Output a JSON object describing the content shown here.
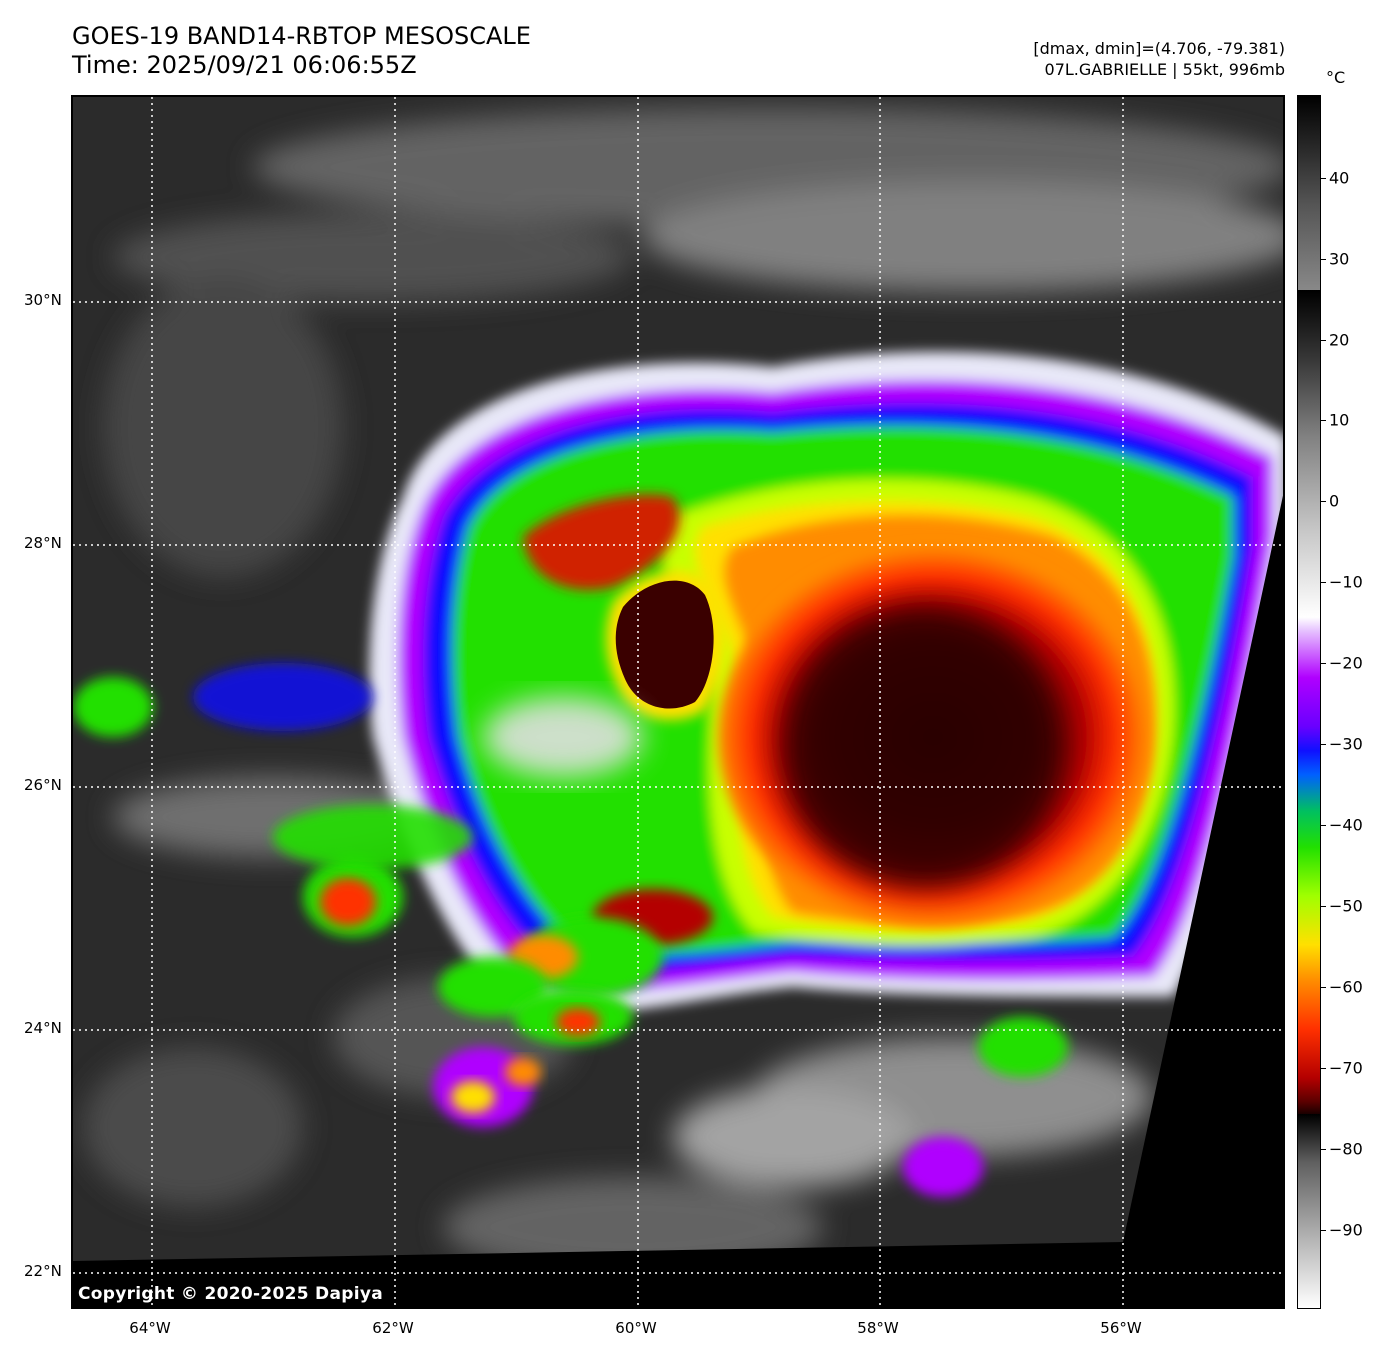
{
  "header": {
    "title": "GOES-19 BAND14-RBTOP MESOSCALE",
    "time": "Time: 2025/09/21 06:06:55Z",
    "dmax_dmin": "[dmax, dmin]=(4.706, -79.381)",
    "storm": "07L.GABRIELLE | 55kt, 996mb"
  },
  "map": {
    "lat_labels": [
      "30°N",
      "28°N",
      "26°N",
      "24°N",
      "22°N"
    ],
    "lon_labels": [
      "64°W",
      "62°W",
      "60°W",
      "58°W",
      "56°W"
    ],
    "copyright": "Copyright © 2020-2025 Dapiya"
  },
  "colorbar": {
    "unit": "°C",
    "ticks": [
      "40",
      "30",
      "20",
      "10",
      "0",
      "−10",
      "−20",
      "−30",
      "−40",
      "−50",
      "−60",
      "−70",
      "−80",
      "−90"
    ]
  },
  "colors": {
    "coldest_tops": "#1a0000",
    "deep_red": "#b40000",
    "orange": "#ff8c00",
    "yellow": "#ffe000",
    "green": "#22e000",
    "blue": "#1010ff",
    "violet": "#b000ff",
    "gridline": "#ffffff"
  }
}
